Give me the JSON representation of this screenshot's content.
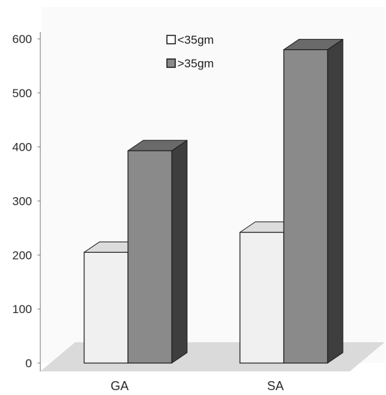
{
  "chart_data": {
    "type": "bar",
    "title": "",
    "xlabel": "",
    "ylabel": "",
    "categories": [
      "GA",
      "SA"
    ],
    "series": [
      {
        "name": "<35gm",
        "values": [
          205,
          242
        ]
      },
      {
        "name": ">35gm",
        "values": [
          393,
          580
        ]
      }
    ],
    "ylim": [
      0,
      600
    ],
    "yticks": [
      0,
      100,
      200,
      300,
      400,
      500,
      600
    ],
    "three_d": true,
    "grid": false,
    "legend_position": "top-center",
    "colors": {
      "series_0_front": "#f0f0f0",
      "series_0_top": "#dcdcdc",
      "series_0_side": "#b4b4b4",
      "series_1_front": "#8a8a8a",
      "series_1_top": "#6a6a6a",
      "series_1_side": "#3e3e3e",
      "floor": "#dadada",
      "wall": "#fafafa"
    }
  }
}
